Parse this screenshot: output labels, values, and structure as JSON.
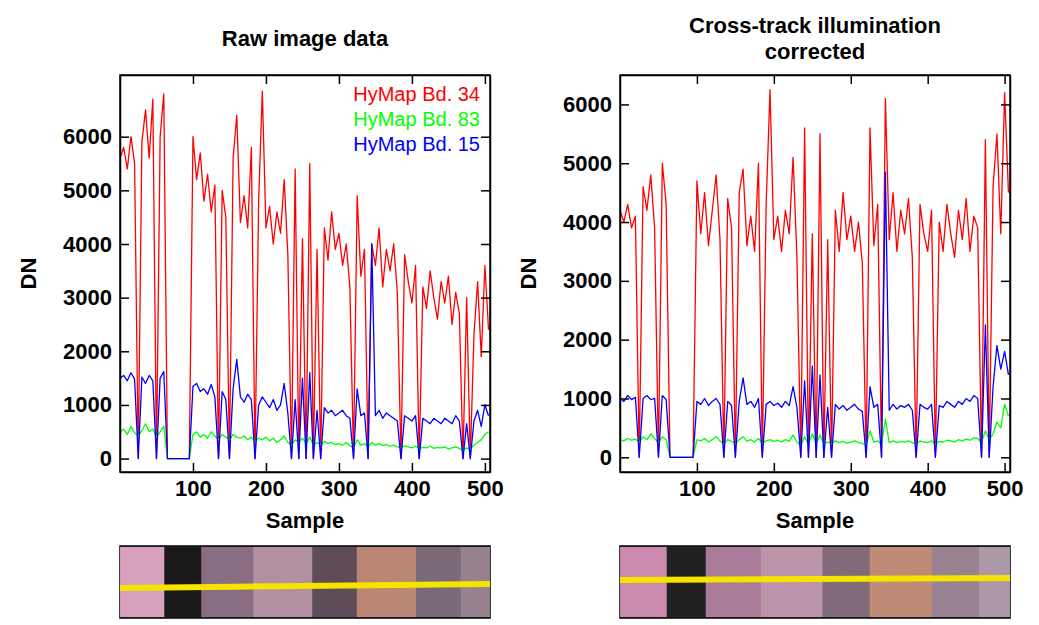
{
  "chart_data": [
    {
      "type": "line",
      "title": "Raw image data",
      "x_label": "Sample",
      "y_label": "DN",
      "xlim": [
        0,
        507
      ],
      "ylim": [
        -250,
        7150
      ],
      "xticks": [
        100,
        200,
        300,
        400,
        500
      ],
      "yticks": [
        0,
        1000,
        2000,
        3000,
        4000,
        5000,
        6000
      ],
      "legend": "upper right",
      "x": [
        0,
        5,
        10,
        15,
        20,
        25,
        30,
        35,
        40,
        45,
        50,
        55,
        60,
        65,
        70,
        75,
        80,
        85,
        90,
        95,
        100,
        105,
        110,
        115,
        120,
        125,
        130,
        135,
        140,
        145,
        150,
        155,
        160,
        165,
        170,
        175,
        180,
        185,
        190,
        195,
        200,
        205,
        210,
        215,
        220,
        225,
        230,
        235,
        240,
        245,
        250,
        255,
        260,
        265,
        270,
        275,
        280,
        285,
        290,
        295,
        300,
        305,
        310,
        315,
        320,
        325,
        330,
        335,
        340,
        345,
        350,
        355,
        360,
        365,
        370,
        375,
        380,
        385,
        390,
        395,
        400,
        405,
        410,
        415,
        420,
        425,
        430,
        435,
        440,
        445,
        450,
        455,
        460,
        465,
        470,
        475,
        480,
        485,
        490,
        495,
        500,
        505
      ],
      "series": [
        {
          "name": "HyMap Bd. 34",
          "color": "#ff0000",
          "values": [
            5600,
            5800,
            5400,
            6000,
            5500,
            0,
            5900,
            6500,
            5600,
            6700,
            0,
            6000,
            6800,
            0,
            0,
            0,
            0,
            0,
            0,
            0,
            6000,
            5200,
            5700,
            4800,
            5300,
            4600,
            5100,
            0,
            5000,
            4500,
            0,
            5600,
            6400,
            4400,
            4900,
            4300,
            5800,
            0,
            4800,
            6850,
            4300,
            4700,
            4000,
            4600,
            4200,
            5200,
            3800,
            0,
            5400,
            0,
            4100,
            0,
            5500,
            0,
            3900,
            0,
            4300,
            3700,
            4600,
            3900,
            4200,
            3600,
            4000,
            3200,
            0,
            4900,
            3400,
            3900,
            0,
            4000,
            3600,
            4300,
            3200,
            3900,
            3500,
            4000,
            3100,
            0,
            3800,
            3300,
            2900,
            3600,
            0,
            3200,
            2800,
            3500,
            3000,
            2600,
            3300,
            2900,
            3400,
            2500,
            3100,
            2700,
            0,
            3000,
            0,
            2300,
            3300,
            1900,
            3600,
            2400
          ]
        },
        {
          "name": "HyMap Bd. 83",
          "color": "#00ff00",
          "values": [
            500,
            550,
            450,
            600,
            480,
            420,
            520,
            650,
            500,
            550,
            400,
            500,
            600,
            0,
            0,
            0,
            0,
            0,
            0,
            0,
            450,
            500,
            400,
            450,
            380,
            500,
            420,
            350,
            450,
            400,
            350,
            450,
            400,
            380,
            420,
            350,
            400,
            320,
            380,
            350,
            400,
            330,
            380,
            300,
            350,
            420,
            300,
            250,
            350,
            300,
            380,
            280,
            400,
            250,
            300,
            260,
            320,
            280,
            300,
            260,
            280,
            250,
            300,
            240,
            200,
            350,
            250,
            280,
            220,
            300,
            250,
            280,
            240,
            260,
            230,
            250,
            220,
            200,
            240,
            220,
            200,
            230,
            190,
            210,
            200,
            230,
            190,
            210,
            200,
            220,
            180,
            200,
            220,
            190,
            150,
            200,
            170,
            250,
            300,
            350,
            450,
            500
          ]
        },
        {
          "name": "HyMap Bd. 15",
          "color": "#0000ff",
          "values": [
            1500,
            1550,
            1450,
            1600,
            1480,
            0,
            1520,
            1400,
            1550,
            1450,
            0,
            1500,
            1620,
            0,
            0,
            0,
            0,
            0,
            0,
            0,
            1350,
            1400,
            1250,
            1300,
            1200,
            1380,
            1150,
            0,
            1250,
            1100,
            0,
            1300,
            1850,
            1150,
            1050,
            1200,
            1100,
            0,
            1000,
            1150,
            1050,
            950,
            1100,
            900,
            1000,
            1400,
            850,
            0,
            1100,
            0,
            1500,
            0,
            1600,
            0,
            900,
            0,
            950,
            850,
            900,
            800,
            850,
            900,
            800,
            750,
            0,
            1300,
            800,
            850,
            0,
            4000,
            800,
            900,
            750,
            850,
            800,
            750,
            700,
            0,
            800,
            750,
            700,
            800,
            0,
            750,
            700,
            650,
            750,
            700,
            650,
            750,
            700,
            650,
            800,
            700,
            0,
            650,
            0,
            700,
            900,
            600,
            1000,
            800
          ]
        }
      ]
    },
    {
      "type": "line",
      "title": "Cross-track illumination corrected",
      "x_label": "Sample",
      "y_label": "DN",
      "xlim": [
        0,
        507
      ],
      "ylim": [
        -250,
        6500
      ],
      "xticks": [
        100,
        200,
        300,
        400,
        500
      ],
      "yticks": [
        0,
        1000,
        2000,
        3000,
        4000,
        5000,
        6000
      ],
      "x": [
        0,
        5,
        10,
        15,
        20,
        25,
        30,
        35,
        40,
        45,
        50,
        55,
        60,
        65,
        70,
        75,
        80,
        85,
        90,
        95,
        100,
        105,
        110,
        115,
        120,
        125,
        130,
        135,
        140,
        145,
        150,
        155,
        160,
        165,
        170,
        175,
        180,
        185,
        190,
        195,
        200,
        205,
        210,
        215,
        220,
        225,
        230,
        235,
        240,
        245,
        250,
        255,
        260,
        265,
        270,
        275,
        280,
        285,
        290,
        295,
        300,
        305,
        310,
        315,
        320,
        325,
        330,
        335,
        340,
        345,
        350,
        355,
        360,
        365,
        370,
        375,
        380,
        385,
        390,
        395,
        400,
        405,
        410,
        415,
        420,
        425,
        430,
        435,
        440,
        445,
        450,
        455,
        460,
        465,
        470,
        475,
        480,
        485,
        490,
        495,
        500,
        505
      ],
      "series": [
        {
          "color": "#ff0000",
          "values": [
            4200,
            4000,
            4300,
            3900,
            4100,
            0,
            4600,
            4200,
            4800,
            3900,
            0,
            5000,
            4300,
            0,
            0,
            0,
            0,
            0,
            0,
            0,
            4700,
            3800,
            4500,
            3600,
            4200,
            4800,
            3700,
            0,
            4400,
            3900,
            0,
            4500,
            4900,
            3600,
            4100,
            3500,
            5000,
            0,
            4300,
            6250,
            3700,
            4100,
            3500,
            4200,
            3800,
            5100,
            3400,
            0,
            5600,
            0,
            3800,
            0,
            5500,
            0,
            3700,
            0,
            4200,
            3500,
            4500,
            3700,
            4100,
            3500,
            4000,
            3300,
            0,
            5600,
            3600,
            4300,
            0,
            6100,
            3700,
            4500,
            3500,
            4200,
            3800,
            4400,
            3400,
            0,
            4300,
            3800,
            3500,
            4200,
            0,
            4000,
            3500,
            4300,
            3800,
            3400,
            4200,
            3700,
            4400,
            3500,
            4100,
            3900,
            0,
            5400,
            0,
            4600,
            5500,
            3800,
            6200,
            4500
          ]
        },
        {
          "color": "#00ff00",
          "values": [
            300,
            280,
            320,
            290,
            310,
            250,
            350,
            300,
            400,
            320,
            250,
            350,
            300,
            0,
            0,
            0,
            0,
            0,
            0,
            0,
            300,
            280,
            320,
            260,
            300,
            350,
            280,
            220,
            300,
            270,
            230,
            300,
            350,
            270,
            300,
            260,
            320,
            240,
            280,
            300,
            270,
            290,
            260,
            300,
            270,
            380,
            260,
            200,
            350,
            220,
            400,
            230,
            380,
            220,
            260,
            230,
            280,
            250,
            270,
            240,
            260,
            280,
            250,
            240,
            200,
            450,
            260,
            280,
            220,
            650,
            250,
            280,
            250,
            270,
            260,
            280,
            250,
            220,
            280,
            260,
            250,
            280,
            220,
            270,
            260,
            290,
            280,
            260,
            300,
            280,
            310,
            290,
            330,
            320,
            250,
            450,
            300,
            400,
            600,
            500,
            900,
            700
          ]
        },
        {
          "color": "#0000ff",
          "values": [
            1000,
            950,
            1050,
            980,
            1020,
            0,
            1000,
            1050,
            980,
            1000,
            0,
            1050,
            980,
            0,
            0,
            0,
            0,
            0,
            0,
            0,
            950,
            900,
            1000,
            880,
            950,
            1000,
            900,
            0,
            950,
            880,
            0,
            950,
            1350,
            900,
            950,
            850,
            1000,
            0,
            900,
            950,
            880,
            920,
            850,
            950,
            880,
            1200,
            850,
            0,
            1300,
            0,
            1550,
            0,
            1400,
            0,
            850,
            0,
            900,
            820,
            880,
            800,
            850,
            900,
            820,
            780,
            0,
            1200,
            850,
            900,
            0,
            4850,
            800,
            900,
            820,
            880,
            850,
            900,
            800,
            0,
            900,
            850,
            820,
            900,
            0,
            880,
            850,
            950,
            900,
            850,
            950,
            900,
            1000,
            950,
            1050,
            1000,
            0,
            2250,
            0,
            1200,
            1900,
            1500,
            1800,
            1400
          ]
        }
      ]
    }
  ]
}
